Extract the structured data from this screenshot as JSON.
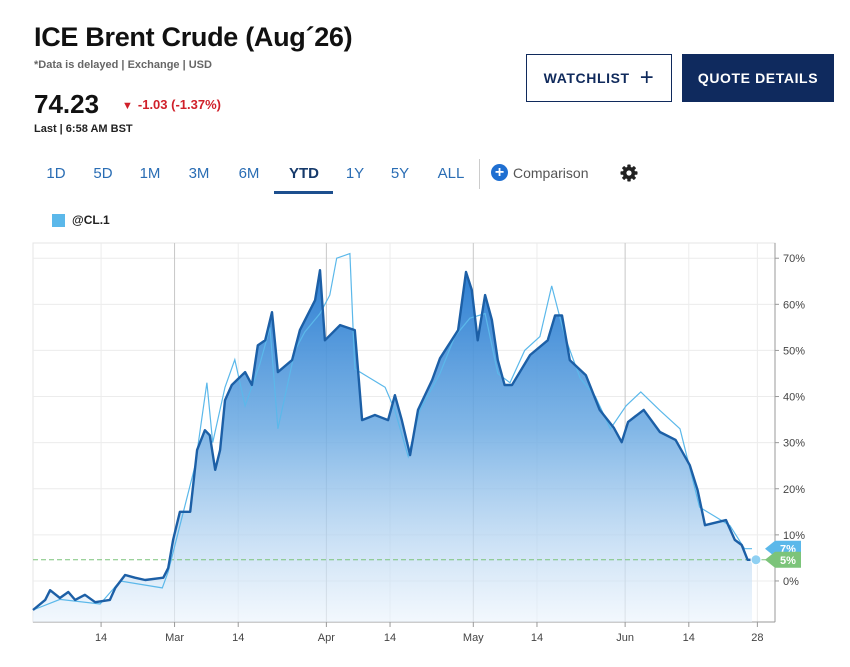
{
  "header": {
    "title": "ICE Brent Crude (Aug´26)",
    "subtitle": "*Data is delayed | Exchange | USD",
    "price": "74.23",
    "change": "-1.03 (-1.37%)",
    "last": "Last | 6:58 AM BST"
  },
  "buttons": [
    "WATCHLIST",
    "QUOTE DETAILS"
  ],
  "tabs": {
    "items": [
      "1D",
      "5D",
      "1M",
      "3M",
      "6M",
      "YTD",
      "1Y",
      "5Y",
      "ALL"
    ],
    "selected": "YTD"
  },
  "comparison": "Comparison",
  "chart_data": {
    "type": "area",
    "grid": true,
    "xlim": [
      31.1,
      182.6
    ],
    "xticks": [
      {
        "value": 45,
        "label": "14"
      },
      {
        "value": 60,
        "label": "Mar"
      },
      {
        "value": 73,
        "label": "14"
      },
      {
        "value": 91,
        "label": "Apr"
      },
      {
        "value": 104,
        "label": "14"
      },
      {
        "value": 121,
        "label": "May"
      },
      {
        "value": 134,
        "label": "14"
      },
      {
        "value": 152,
        "label": "Jun"
      },
      {
        "value": 165,
        "label": "14"
      },
      {
        "value": 179,
        "label": "28"
      }
    ],
    "ylim": [
      -8.9,
      73.3
    ],
    "yticks": [
      {
        "value": 0,
        "label": "0%"
      },
      {
        "value": 10,
        "label": "10%"
      },
      {
        "value": 20,
        "label": "20%"
      },
      {
        "value": 30,
        "label": "30%"
      },
      {
        "value": 40,
        "label": "40%"
      },
      {
        "value": 50,
        "label": "50%"
      },
      {
        "value": 60,
        "label": "60%"
      },
      {
        "value": 70,
        "label": "70%"
      }
    ],
    "series": [
      {
        "color": "#1c5fa6",
        "end_label": "5%",
        "end_color": "#7cc47a",
        "x": [
          31.1,
          33.6,
          34.6,
          36.6,
          38.3,
          39.7,
          41.7,
          43.8,
          46.8,
          47.9,
          49.9,
          51.9,
          54.0,
          57.7,
          58.7,
          59.7,
          61.1,
          63.2,
          64.6,
          66.2,
          67.2,
          68.3,
          69.3,
          70.3,
          71.7,
          74.4,
          75.8,
          77.0,
          78.5,
          79.9,
          81.1,
          84.0,
          85.6,
          88.7,
          89.7,
          90.7,
          93.8,
          96.8,
          98.3,
          100.9,
          103.6,
          105.0,
          106.4,
          108.1,
          109.7,
          112.6,
          114.2,
          117.9,
          119.5,
          120.7,
          121.9,
          123.4,
          124.8,
          126.0,
          127.4,
          128.9,
          132.6,
          136.2,
          137.7,
          139.1,
          140.7,
          144.0,
          146.8,
          149.7,
          151.3,
          152.6,
          155.8,
          159.1,
          162.3,
          165.2,
          166.8,
          168.3,
          172.6,
          174.4,
          175.8,
          177.0,
          177.9
        ],
        "values": [
          -6.3,
          -4.1,
          -2.0,
          -3.7,
          -2.4,
          -4.1,
          -3.0,
          -4.6,
          -4.1,
          -1.5,
          1.3,
          0.7,
          0.2,
          0.7,
          2.8,
          8.9,
          15.0,
          15.0,
          28.4,
          32.7,
          31.6,
          24.1,
          28.4,
          39.2,
          42.5,
          45.3,
          42.5,
          51.1,
          52.2,
          58.3,
          45.3,
          47.9,
          54.4,
          60.9,
          67.4,
          52.2,
          55.5,
          54.4,
          34.9,
          36.0,
          34.9,
          40.3,
          34.9,
          27.3,
          37.1,
          43.6,
          48.3,
          54.4,
          67.0,
          63.1,
          52.2,
          62.0,
          56.6,
          47.9,
          42.5,
          42.5,
          49.0,
          52.2,
          57.6,
          57.6,
          47.9,
          44.6,
          37.1,
          33.2,
          30.1,
          34.5,
          37.1,
          32.3,
          30.6,
          25.1,
          19.7,
          12.1,
          13.2,
          8.9,
          7.8,
          4.6,
          4.6
        ]
      },
      {
        "name": "@CL.1",
        "color": "#5bb8ea",
        "end_label": "7%",
        "end_color": "#5bb8ea",
        "x": [
          31.1,
          36.6,
          44.8,
          48.9,
          57.5,
          58.7,
          61.1,
          64.2,
          66.6,
          67.8,
          70.3,
          72.3,
          74.4,
          77.4,
          79.5,
          81.1,
          84.6,
          86.6,
          89.7,
          91.7,
          93.1,
          95.8,
          96.8,
          99.9,
          103.0,
          105.0,
          107.7,
          110.1,
          114.2,
          117.2,
          120.3,
          123.4,
          126.0,
          128.5,
          131.5,
          134.6,
          137.0,
          139.7,
          142.8,
          145.9,
          149.0,
          152.2,
          155.2,
          159.1,
          163.2,
          167.2,
          170.3,
          173.4,
          176.4,
          177.9
        ],
        "values": [
          -6.3,
          -4.0,
          -5.0,
          0,
          -1.5,
          2,
          12,
          25,
          43,
          30,
          42,
          48,
          38,
          47,
          55,
          33,
          50,
          54,
          58,
          62,
          70,
          71,
          46,
          44,
          42,
          37,
          27,
          37,
          45,
          53,
          57,
          58,
          45,
          43,
          50,
          53,
          64,
          53,
          44,
          40,
          33,
          38,
          41,
          37,
          33,
          16,
          14,
          12,
          7,
          7
        ]
      }
    ]
  }
}
